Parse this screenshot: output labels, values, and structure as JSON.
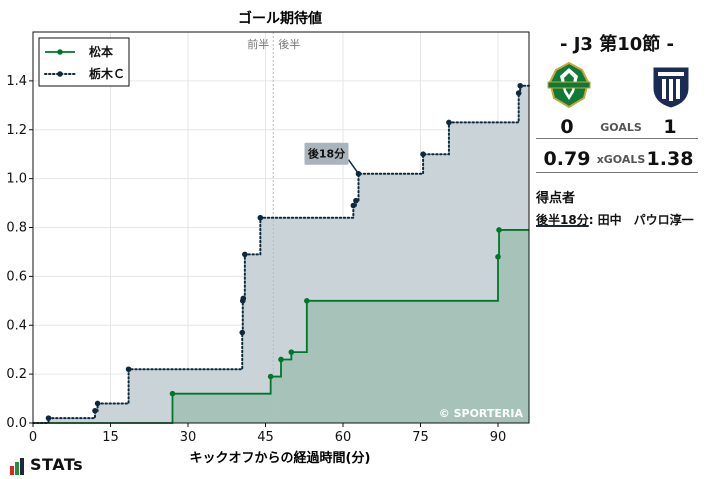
{
  "chart_data": {
    "type": "step-line",
    "title": "ゴール期待値",
    "xlabel": "キックオフからの経過時間(分)",
    "ylabel": "",
    "xlim": [
      0,
      96
    ],
    "ylim": [
      0,
      1.6
    ],
    "xticks": [
      0,
      15,
      30,
      45,
      60,
      75,
      90
    ],
    "yticks": [
      0.0,
      0.2,
      0.4,
      0.6,
      0.8,
      1.0,
      1.2,
      1.4
    ],
    "halftime_minute": 46.5,
    "halftime_labels": {
      "first": "前半",
      "second": "後半"
    },
    "legend_position": "top-left",
    "grid": true,
    "series": [
      {
        "name": "松本",
        "color": "#00762b",
        "fill": "#a7c3b9",
        "style": "solid",
        "points": [
          [
            27,
            0.12
          ],
          [
            46,
            0.19
          ],
          [
            48,
            0.26
          ],
          [
            50,
            0.29
          ],
          [
            53,
            0.5
          ],
          [
            90,
            0.68
          ],
          [
            90.2,
            0.79
          ]
        ]
      },
      {
        "name": "栃木Ｃ",
        "color": "#0d2a3d",
        "fill": "#cad3d8",
        "style": "dotted",
        "points": [
          [
            3,
            0.02
          ],
          [
            12,
            0.05
          ],
          [
            12.5,
            0.08
          ],
          [
            18.5,
            0.22
          ],
          [
            40.5,
            0.37
          ],
          [
            40.6,
            0.5
          ],
          [
            40.7,
            0.51
          ],
          [
            41,
            0.69
          ],
          [
            44,
            0.84
          ],
          [
            62,
            0.89
          ],
          [
            62.5,
            0.91
          ],
          [
            63,
            1.02
          ],
          [
            75.5,
            1.1
          ],
          [
            80.5,
            1.23
          ],
          [
            94,
            1.35
          ],
          [
            94.3,
            1.38
          ]
        ]
      }
    ],
    "annotations": [
      {
        "text": "後18分",
        "series": "栃木Ｃ",
        "x": 63,
        "y": 1.02
      }
    ],
    "watermark": "© SPORTERIA"
  },
  "match": {
    "title": "-  J3 第10節  -",
    "home_crest": "matsumoto-crest",
    "away_crest": "tochigi-city-crest",
    "home_goals": "0",
    "goals_label": "GOALS",
    "away_goals": "1",
    "home_xg": "0.79",
    "xg_label": "xGOALS",
    "away_xg": "1.38",
    "scorers_title": "得点者",
    "scorer_time": "後半18分",
    "scorer_name": ": 田中　パウロ淳一"
  },
  "brand": {
    "name": "STATs"
  },
  "colors": {
    "home": "#00762b",
    "away": "#0d2a3d"
  }
}
